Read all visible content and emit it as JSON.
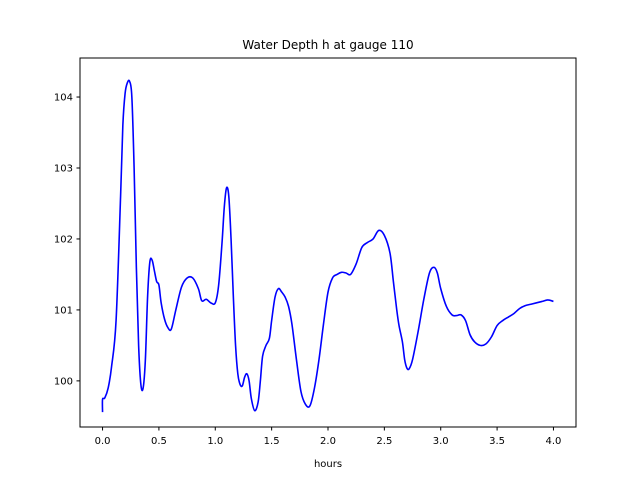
{
  "chart_data": {
    "type": "line",
    "title": "Water Depth h at gauge 110",
    "xlabel": "hours",
    "ylabel": "",
    "xlim": [
      -0.2,
      4.2
    ],
    "ylim": [
      99.35,
      104.55
    ],
    "xticks": [
      0.0,
      0.5,
      1.0,
      1.5,
      2.0,
      2.5,
      3.0,
      3.5,
      4.0
    ],
    "xtick_labels": [
      "0.0",
      "0.5",
      "1.0",
      "1.5",
      "2.0",
      "2.5",
      "3.0",
      "3.5",
      "4.0"
    ],
    "yticks": [
      100,
      101,
      102,
      103,
      104
    ],
    "ytick_labels": [
      "100",
      "101",
      "102",
      "103",
      "104"
    ],
    "grid": false,
    "series": [
      {
        "color": "#0000ff",
        "x": [
          0.0,
          0.0,
          0.02,
          0.05,
          0.08,
          0.12,
          0.16,
          0.18,
          0.2,
          0.22,
          0.24,
          0.26,
          0.28,
          0.3,
          0.32,
          0.34,
          0.36,
          0.38,
          0.4,
          0.42,
          0.44,
          0.46,
          0.48,
          0.5,
          0.52,
          0.55,
          0.58,
          0.61,
          0.65,
          0.7,
          0.75,
          0.8,
          0.85,
          0.88,
          0.92,
          0.96,
          1.0,
          1.03,
          1.06,
          1.08,
          1.1,
          1.12,
          1.14,
          1.16,
          1.18,
          1.2,
          1.22,
          1.24,
          1.26,
          1.28,
          1.3,
          1.32,
          1.35,
          1.38,
          1.4,
          1.42,
          1.45,
          1.48,
          1.5,
          1.53,
          1.56,
          1.59,
          1.62,
          1.65,
          1.68,
          1.72,
          1.76,
          1.8,
          1.84,
          1.88,
          1.92,
          1.96,
          2.0,
          2.04,
          2.08,
          2.12,
          2.16,
          2.2,
          2.25,
          2.3,
          2.35,
          2.4,
          2.45,
          2.5,
          2.55,
          2.58,
          2.61,
          2.63,
          2.66,
          2.68,
          2.7,
          2.72,
          2.75,
          2.8,
          2.85,
          2.9,
          2.94,
          2.97,
          3.0,
          3.05,
          3.1,
          3.14,
          3.18,
          3.22,
          3.26,
          3.3,
          3.35,
          3.4,
          3.45,
          3.5,
          3.55,
          3.6,
          3.65,
          3.7,
          3.75,
          3.8,
          3.85,
          3.9,
          3.95,
          4.0
        ],
        "y": [
          99.56,
          99.74,
          99.76,
          99.9,
          100.2,
          100.85,
          102.6,
          103.6,
          104.05,
          104.2,
          104.22,
          104.0,
          103.0,
          101.6,
          100.5,
          99.95,
          99.9,
          100.3,
          101.2,
          101.68,
          101.7,
          101.55,
          101.4,
          101.35,
          101.1,
          100.87,
          100.75,
          100.73,
          101.0,
          101.32,
          101.45,
          101.45,
          101.3,
          101.13,
          101.15,
          101.1,
          101.1,
          101.35,
          101.95,
          102.45,
          102.72,
          102.6,
          102.0,
          101.2,
          100.5,
          100.1,
          99.95,
          99.93,
          100.05,
          100.1,
          100.0,
          99.75,
          99.58,
          99.7,
          100.0,
          100.35,
          100.5,
          100.6,
          100.85,
          101.18,
          101.3,
          101.25,
          101.18,
          101.05,
          100.8,
          100.3,
          99.85,
          99.67,
          99.65,
          99.9,
          100.3,
          100.8,
          101.25,
          101.45,
          101.5,
          101.53,
          101.52,
          101.5,
          101.65,
          101.88,
          101.95,
          102.0,
          102.12,
          102.05,
          101.8,
          101.4,
          101.0,
          100.78,
          100.55,
          100.3,
          100.18,
          100.17,
          100.3,
          100.7,
          101.15,
          101.52,
          101.6,
          101.52,
          101.3,
          101.05,
          100.93,
          100.92,
          100.93,
          100.85,
          100.65,
          100.55,
          100.5,
          100.52,
          100.62,
          100.78,
          100.85,
          100.9,
          100.95,
          101.02,
          101.06,
          101.08,
          101.1,
          101.12,
          101.14,
          101.12
        ]
      }
    ]
  }
}
